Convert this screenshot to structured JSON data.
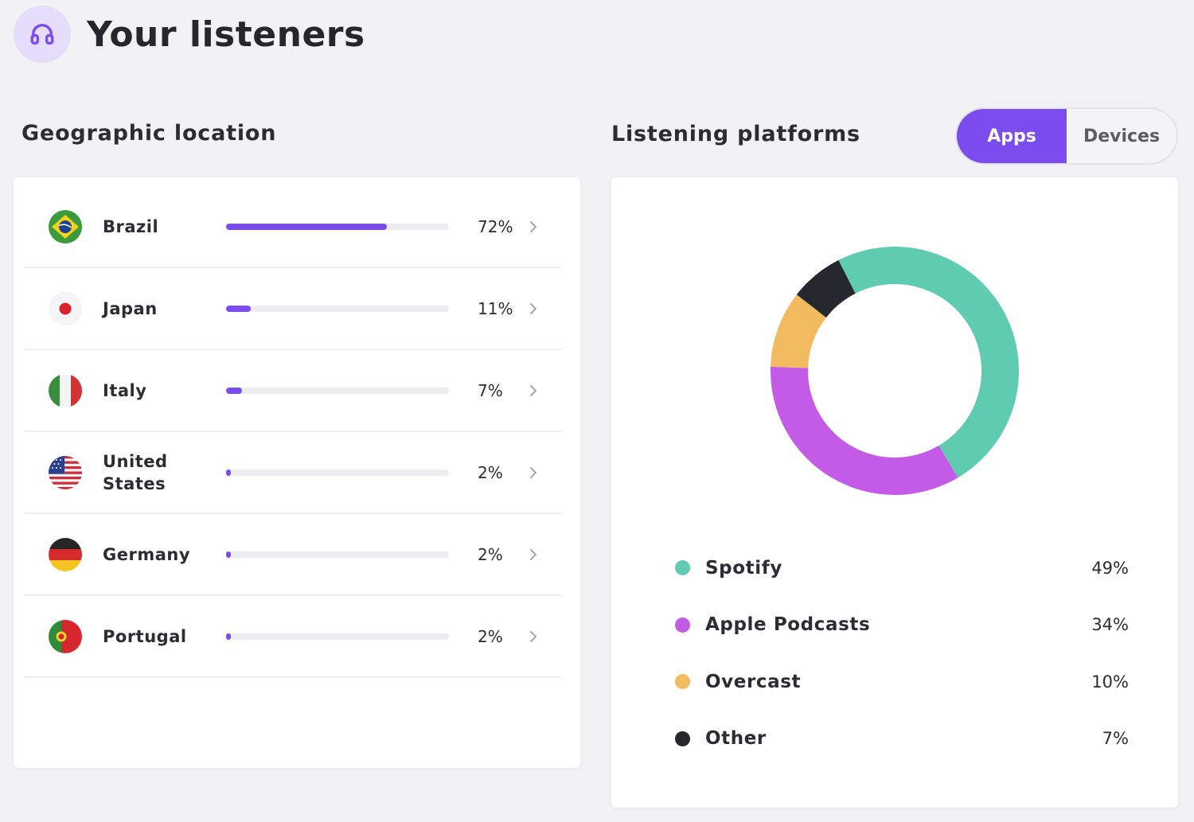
{
  "header": {
    "title": "Your listeners",
    "icon": "headphones-icon",
    "icon_color": "#7c4dee"
  },
  "geo": {
    "title": "Geographic location",
    "rows": [
      {
        "country": "Brazil",
        "percent_label": "72%",
        "share": 0.72,
        "flag": "brazil-flag"
      },
      {
        "country": "Japan",
        "percent_label": "11%",
        "share": 0.11,
        "flag": "japan-flag"
      },
      {
        "country": "Italy",
        "percent_label": "7%",
        "share": 0.07,
        "flag": "italy-flag"
      },
      {
        "country": "United States",
        "percent_label": "2%",
        "share": 0.02,
        "flag": "us-flag"
      },
      {
        "country": "Germany",
        "percent_label": "2%",
        "share": 0.02,
        "flag": "germany-flag"
      },
      {
        "country": "Portugal",
        "percent_label": "2%",
        "share": 0.02,
        "flag": "portugal-flag"
      }
    ]
  },
  "platforms": {
    "title": "Listening platforms",
    "tabs": {
      "apps": "Apps",
      "devices": "Devices",
      "selected": "Apps"
    },
    "accent": "#7c4dee"
  },
  "chart_data": {
    "type": "pie",
    "categories": [
      "Spotify",
      "Apple Podcasts",
      "Overcast",
      "Other"
    ],
    "values": [
      49,
      34,
      10,
      7
    ],
    "value_labels": [
      "49%",
      "34%",
      "10%",
      "7%"
    ],
    "colors": [
      "#5fccb2",
      "#c45be6",
      "#f2bb5f",
      "#25282f"
    ]
  }
}
